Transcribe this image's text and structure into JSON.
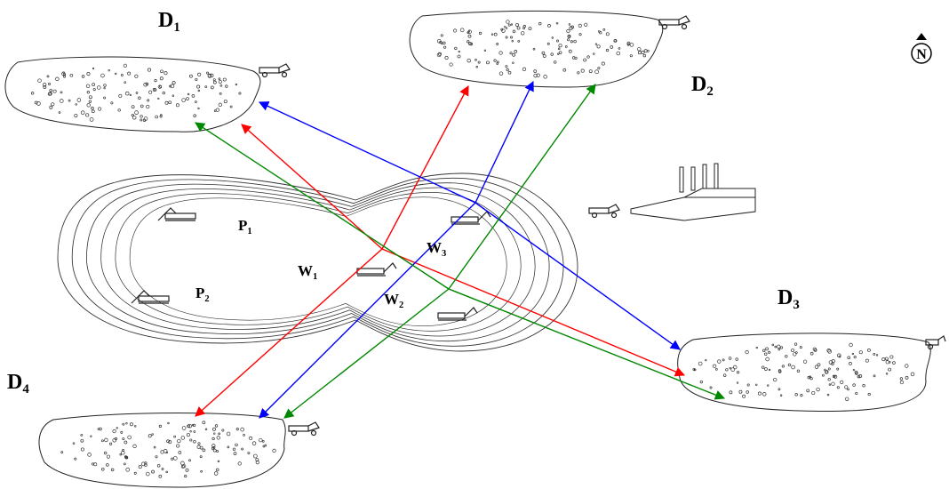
{
  "dumps": [
    {
      "label": "D",
      "sub": "1"
    },
    {
      "label": "D",
      "sub": "2"
    },
    {
      "label": "D",
      "sub": "3"
    },
    {
      "label": "D",
      "sub": "4"
    }
  ],
  "pits": [
    {
      "label": "P",
      "sub": "1"
    },
    {
      "label": "P",
      "sub": "2"
    }
  ],
  "waste": [
    {
      "label": "W",
      "sub": "1"
    },
    {
      "label": "W",
      "sub": "2"
    },
    {
      "label": "W",
      "sub": "3"
    }
  ],
  "north": "N"
}
